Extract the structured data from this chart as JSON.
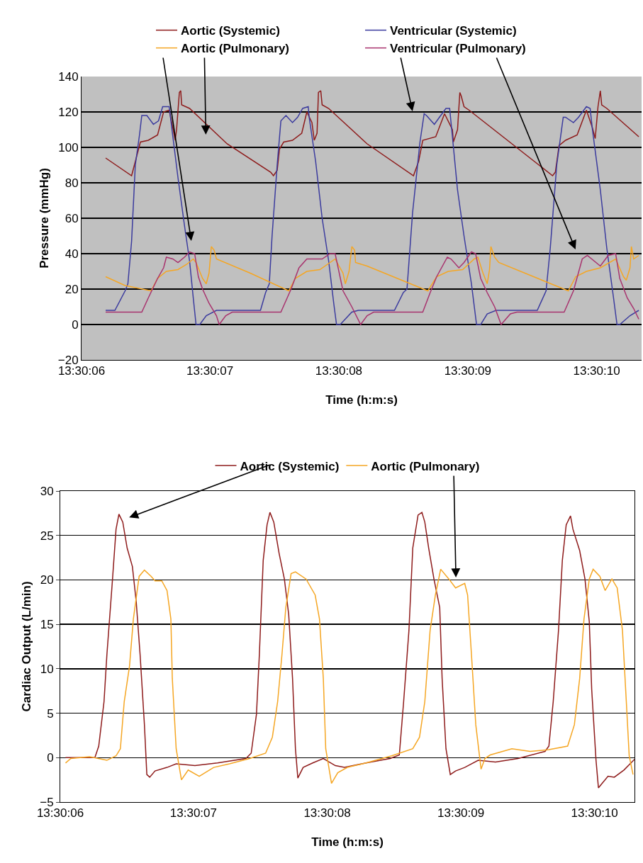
{
  "chart_data": [
    {
      "type": "line",
      "xlabel": "Time (h:m:s)",
      "ylabel": "Pressure (mmHg)",
      "xlim": [
        13.501667,
        13.502875
      ],
      "ylim": [
        -20,
        140
      ],
      "xticks": [
        {
          "value": 13.501667,
          "label": "13:30:06"
        },
        {
          "value": 13.501944,
          "label": "13:30:07"
        },
        {
          "value": 13.502222,
          "label": "13:30:08"
        },
        {
          "value": 13.5025,
          "label": "13:30:09"
        },
        {
          "value": 13.502778,
          "label": "13:30:10"
        }
      ],
      "yticks": [
        {
          "value": -20,
          "label": "−20"
        },
        0,
        20,
        40,
        60,
        80,
        100,
        120,
        140
      ],
      "grid": "y",
      "legend": "top",
      "marker": "none",
      "line_style": "solid",
      "series": [
        {
          "name": "Aortic (Systemic)",
          "color": "#8e1b1b",
          "x": [
            13.501719,
            13.501775,
            13.501786,
            13.501794,
            13.501811,
            13.501831,
            13.501844,
            13.501856,
            13.501864,
            13.501869,
            13.501872,
            13.501878,
            13.501881,
            13.501883,
            13.5019,
            13.501981,
            13.502075,
            13.502081,
            13.502089,
            13.502094,
            13.502103,
            13.502122,
            13.502142,
            13.502153,
            13.502164,
            13.502169,
            13.502175,
            13.502178,
            13.502183,
            13.502186,
            13.5022,
            13.502283,
            13.502383,
            13.502394,
            13.502403,
            13.502431,
            13.50245,
            13.502467,
            13.502469,
            13.502478,
            13.502483,
            13.502486,
            13.502492,
            13.502503,
            13.502683,
            13.502689,
            13.502697,
            13.502711,
            13.502736,
            13.502756,
            13.502769,
            13.502775,
            13.502781,
            13.502786,
            13.502789,
            13.5028,
            13.502869
          ],
          "values": [
            94,
            84,
            95,
            103,
            104,
            107,
            120,
            121,
            111,
            104,
            110,
            131,
            132,
            124,
            122,
            102,
            86,
            84,
            87,
            99,
            103,
            104,
            108,
            120,
            114,
            104,
            108,
            131,
            132,
            124,
            122,
            102,
            84,
            92,
            104,
            106,
            119,
            110,
            103,
            110,
            131,
            129,
            123,
            121,
            84,
            86,
            101,
            104,
            107,
            121,
            111,
            105,
            123,
            132,
            124,
            122,
            106
          ]
        },
        {
          "name": "Ventricular (Systemic)",
          "color": "#3b3b9e",
          "x": [
            13.501719,
            13.501739,
            13.501761,
            13.501767,
            13.501775,
            13.501783,
            13.501792,
            13.501797,
            13.501808,
            13.501822,
            13.501833,
            13.501842,
            13.501856,
            13.501864,
            13.501875,
            13.501889,
            13.5019,
            13.501908,
            13.501914,
            13.501922,
            13.501936,
            13.501958,
            13.502053,
            13.502064,
            13.502072,
            13.502078,
            13.502089,
            13.502097,
            13.502108,
            13.502122,
            13.502133,
            13.502144,
            13.502156,
            13.502158,
            13.502172,
            13.502186,
            13.5022,
            13.502211,
            13.502217,
            13.502225,
            13.50225,
            13.502264,
            13.502342,
            13.502361,
            13.502369,
            13.502381,
            13.502397,
            13.502406,
            13.502411,
            13.502428,
            13.502439,
            13.502453,
            13.502461,
            13.502467,
            13.502478,
            13.502492,
            13.502508,
            13.502519,
            13.502528,
            13.502542,
            13.502561,
            13.50265,
            13.502669,
            13.502678,
            13.502692,
            13.502706,
            13.502711,
            13.502728,
            13.502739,
            13.502756,
            13.502764,
            13.502769,
            13.502786,
            13.5028,
            13.502814,
            13.502822,
            13.502828,
            13.50285,
            13.502869
          ],
          "values": [
            8,
            8,
            19,
            23,
            47,
            90,
            107,
            118,
            118,
            113,
            115,
            123,
            123,
            106,
            83,
            56,
            36,
            15,
            0,
            0,
            5,
            8,
            8,
            18,
            23,
            50,
            90,
            115,
            118,
            114,
            117,
            122,
            123,
            117,
            92,
            60,
            36,
            12,
            0,
            0,
            7,
            8,
            8,
            18,
            20,
            63,
            103,
            119,
            118,
            113,
            117,
            122,
            122,
            106,
            76,
            50,
            23,
            0,
            0,
            6,
            8,
            8,
            19,
            43,
            90,
            117,
            117,
            114,
            117,
            123,
            122,
            110,
            76,
            43,
            16,
            0,
            0,
            5,
            8
          ]
        },
        {
          "name": "Aortic (Pulmonary)",
          "color": "#f5a623",
          "x": [
            13.501719,
            13.501761,
            13.501817,
            13.501831,
            13.50185,
            13.501875,
            13.501894,
            13.501908,
            13.501914,
            13.501928,
            13.501936,
            13.501942,
            13.501947,
            13.501953,
            13.501958,
            13.502031,
            13.502114,
            13.502128,
            13.502153,
            13.502181,
            13.502214,
            13.502231,
            13.502236,
            13.502244,
            13.50225,
            13.502256,
            13.502258,
            13.502283,
            13.502414,
            13.502433,
            13.502458,
            13.502489,
            13.502514,
            13.502522,
            13.502533,
            13.502542,
            13.502547,
            13.50255,
            13.502558,
            13.502567,
            13.502717,
            13.502733,
            13.502756,
            13.502786,
            13.502819,
            13.502836,
            13.502842,
            13.50285,
            13.502853,
            13.502858,
            13.502869
          ],
          "values": [
            27,
            22,
            19,
            26,
            30,
            31,
            34,
            37,
            35,
            26,
            23,
            29,
            44,
            42,
            37,
            29,
            19,
            26,
            30,
            31,
            37,
            29,
            23,
            30,
            44,
            42,
            35,
            33,
            19,
            27,
            30,
            31,
            37,
            38,
            29,
            23,
            31,
            44,
            38,
            35,
            19,
            27,
            30,
            32,
            37,
            27,
            25,
            32,
            44,
            37,
            39
          ]
        },
        {
          "name": "Ventricular (Pulmonary)",
          "color": "#a8336e",
          "x": [
            13.501719,
            13.501797,
            13.501811,
            13.501831,
            13.501844,
            13.50185,
            13.501864,
            13.501875,
            13.501889,
            13.5019,
            13.501911,
            13.501919,
            13.501928,
            13.501942,
            13.501958,
            13.501964,
            13.501978,
            13.501992,
            13.502097,
            13.502119,
            13.502136,
            13.502153,
            13.502172,
            13.502186,
            13.502203,
            13.502214,
            13.502231,
            13.50225,
            13.502269,
            13.502283,
            13.502297,
            13.502403,
            13.502419,
            13.502433,
            13.502456,
            13.502464,
            13.502481,
            13.502492,
            13.502508,
            13.502517,
            13.502528,
            13.502542,
            13.502558,
            13.502572,
            13.502592,
            13.502606,
            13.502708,
            13.502728,
            13.502747,
            13.502758,
            13.502786,
            13.502803,
            13.502819,
            13.502828,
            13.502844,
            13.502858,
            13.502869
          ],
          "values": [
            7,
            7,
            15,
            26,
            32,
            38,
            37,
            35,
            38,
            41,
            40,
            27,
            20,
            12,
            5,
            0,
            5,
            7,
            7,
            20,
            32,
            37,
            37,
            37,
            40,
            40,
            19,
            10,
            0,
            5,
            7,
            7,
            18,
            27,
            38,
            37,
            32,
            35,
            41,
            40,
            26,
            18,
            10,
            0,
            6,
            7,
            7,
            19,
            37,
            39,
            33,
            39,
            40,
            26,
            15,
            9,
            3
          ]
        }
      ]
    },
    {
      "type": "line",
      "xlabel": "Time (h:m:s)",
      "ylabel": "Cardiac Output (L/min)",
      "xlim": [
        13.501667,
        13.502861
      ],
      "ylim": [
        -5,
        30
      ],
      "xticks": [
        {
          "value": 13.501667,
          "label": "13:30:06"
        },
        {
          "value": 13.501944,
          "label": "13:30:07"
        },
        {
          "value": 13.502222,
          "label": "13:30:08"
        },
        {
          "value": 13.5025,
          "label": "13:30:09"
        },
        {
          "value": 13.502778,
          "label": "13:30:10"
        }
      ],
      "yticks": [
        {
          "value": -5,
          "label": "−5"
        },
        0,
        5,
        10,
        15,
        20,
        25,
        30
      ],
      "grid": "y",
      "legend": "top",
      "marker": "none",
      "line_style": "solid",
      "series": [
        {
          "name": "Aortic (Systemic)",
          "color": "#8e1b1b",
          "x": [
            13.501678,
            13.501739,
            13.501747,
            13.501758,
            13.501764,
            13.501775,
            13.501783,
            13.501789,
            13.501797,
            13.501806,
            13.501817,
            13.501825,
            13.501833,
            13.501842,
            13.501847,
            13.501853,
            13.501864,
            13.501889,
            13.501908,
            13.501947,
            13.501994,
            13.502053,
            13.502064,
            13.502075,
            13.502081,
            13.502089,
            13.502097,
            13.502103,
            13.502111,
            13.502122,
            13.502133,
            13.502142,
            13.50215,
            13.502156,
            13.502161,
            13.502172,
            13.502192,
            13.502214,
            13.502239,
            13.502258,
            13.502303,
            13.502353,
            13.502372,
            13.502381,
            13.502392,
            13.5024,
            13.502411,
            13.502419,
            13.502425,
            13.502433,
            13.502444,
            13.502456,
            13.502461,
            13.502469,
            13.502478,
            13.502489,
            13.502508,
            13.502536,
            13.502572,
            13.502619,
            13.502675,
            13.502683,
            13.502692,
            13.502703,
            13.502711,
            13.502719,
            13.502728,
            13.502733,
            13.502747,
            13.502758,
            13.502767,
            13.502772,
            13.502781,
            13.502786,
            13.502792,
            13.502806,
            13.502819,
            13.502839,
            13.502861
          ],
          "values": [
            0,
            0,
            1.3,
            6.3,
            11.6,
            19.6,
            25.7,
            27.4,
            26.5,
            23.6,
            21.5,
            17.5,
            11.6,
            3.7,
            -1.9,
            -2.2,
            -1.5,
            -1.1,
            -0.7,
            -0.9,
            -0.6,
            -0.1,
            0.5,
            4.9,
            11.6,
            22.2,
            26.2,
            27.6,
            26.5,
            23,
            20.1,
            16.1,
            8.9,
            1,
            -2.3,
            -1.1,
            -0.6,
            -0.1,
            -0.9,
            -1.1,
            -0.6,
            -0.1,
            0.3,
            6.3,
            14.3,
            23.6,
            27.3,
            27.6,
            26.5,
            23.6,
            20.1,
            16.9,
            8.9,
            1,
            -1.9,
            -1.5,
            -1.1,
            -0.3,
            -0.5,
            -0.1,
            0.7,
            1.3,
            6.3,
            14.3,
            22.2,
            26.2,
            27.2,
            25.7,
            23.3,
            20.1,
            15.3,
            7.7,
            -0.3,
            -3.4,
            -3,
            -2.1,
            -2.2,
            -1.4,
            -0.2
          ]
        },
        {
          "name": "Aortic (Pulmonary)",
          "color": "#f5a623",
          "x": [
            13.501678,
            13.501689,
            13.501728,
            13.501764,
            13.501783,
            13.501792,
            13.5018,
            13.501811,
            13.501819,
            13.501831,
            13.501842,
            13.501856,
            13.501864,
            13.501878,
            13.501889,
            13.501897,
            13.5019,
            13.501908,
            13.501919,
            13.501933,
            13.501956,
            13.501986,
            13.502019,
            13.502061,
            13.502094,
            13.502108,
            13.502119,
            13.502128,
            13.502136,
            13.502147,
            13.502156,
            13.502178,
            13.502197,
            13.502206,
            13.502214,
            13.502219,
            13.502231,
            13.502244,
            13.502264,
            13.502303,
            13.502356,
            13.5024,
            13.502414,
            13.502425,
            13.502436,
            13.502447,
            13.502458,
            13.502475,
            13.502489,
            13.502508,
            13.502514,
            13.502522,
            13.502531,
            13.502542,
            13.50255,
            13.502561,
            13.502606,
            13.502644,
            13.502683,
            13.502722,
            13.502736,
            13.502747,
            13.502756,
            13.502767,
            13.502775,
            13.502789,
            13.5028,
            13.502814,
            13.502825,
            13.502836,
            13.502844,
            13.50285,
            13.502858
          ],
          "values": [
            -0.6,
            -0.1,
            0.1,
            -0.3,
            0.2,
            1,
            6.3,
            10.3,
            15.6,
            20.4,
            21.1,
            20.4,
            19.9,
            19.9,
            18.8,
            15.6,
            8.9,
            1,
            -2.5,
            -1.4,
            -2.1,
            -1.1,
            -0.7,
            -0.1,
            0.5,
            2.3,
            6.3,
            11.6,
            16.9,
            20.7,
            20.9,
            20.1,
            18.3,
            15.6,
            8.9,
            1,
            -2.9,
            -1.7,
            -1.1,
            -0.6,
            0.2,
            1,
            2.3,
            6.3,
            14.3,
            18.3,
            21.2,
            20.1,
            19.1,
            19.6,
            18.3,
            11.6,
            3.7,
            -1.3,
            -0.1,
            0.3,
            1,
            0.7,
            0.9,
            1.3,
            3.7,
            8.9,
            15.6,
            20.1,
            21.2,
            20.4,
            18.8,
            20.1,
            19.1,
            14.3,
            6.3,
            0.2,
            -1.9
          ]
        }
      ]
    }
  ]
}
